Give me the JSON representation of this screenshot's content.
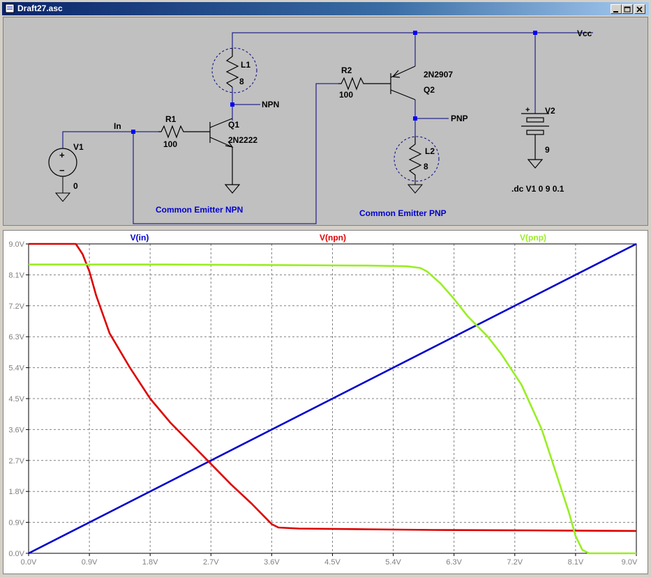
{
  "window": {
    "title": "Draft27.asc"
  },
  "schematic": {
    "labels": {
      "in": "In",
      "npn": "NPN",
      "pnp": "PNP",
      "vcc": "Vcc",
      "v1": "V1",
      "v1_val": "0",
      "v2": "V2",
      "v2_val": "9",
      "r1": "R1",
      "r1_val": "100",
      "r2": "R2",
      "r2_val": "100",
      "q1": "Q1",
      "q1_model": "2N2222",
      "q2": "Q2",
      "q2_model": "2N2907",
      "l1": "L1",
      "l1_val": "8",
      "l2": "L2",
      "l2_val": "8",
      "plus1": "+",
      "minus1": "−",
      "plus2": "+"
    },
    "directive": ".dc V1 0 9 0.1",
    "caption_npn": "Common Emitter NPN",
    "caption_pnp": "Common Emitter PNP"
  },
  "chart_data": {
    "type": "line",
    "xlim": [
      0,
      9
    ],
    "ylim": [
      0,
      9
    ],
    "x_ticks": [
      "0.0V",
      "0.9V",
      "1.8V",
      "2.7V",
      "3.6V",
      "4.5V",
      "5.4V",
      "6.3V",
      "7.2V",
      "8.1V",
      "9.0V"
    ],
    "y_ticks": [
      "0.0V",
      "0.9V",
      "1.8V",
      "2.7V",
      "3.6V",
      "4.5V",
      "5.4V",
      "6.3V",
      "7.2V",
      "8.1V",
      "9.0V"
    ],
    "grid": true,
    "series": [
      {
        "name": "V(in)",
        "color": "#0000cc",
        "x": [
          0,
          9
        ],
        "y": [
          0,
          9
        ]
      },
      {
        "name": "V(npn)",
        "color": "#dd0000",
        "x": [
          0,
          0.7,
          0.8,
          0.9,
          1.0,
          1.2,
          1.5,
          1.8,
          2.1,
          2.4,
          2.7,
          3.0,
          3.3,
          3.5,
          3.6,
          3.7,
          4.0,
          5.0,
          6.0,
          7.0,
          8.0,
          9.0
        ],
        "y": [
          9.0,
          9.0,
          8.7,
          8.2,
          7.5,
          6.4,
          5.4,
          4.5,
          3.8,
          3.2,
          2.6,
          2.0,
          1.45,
          1.05,
          0.85,
          0.75,
          0.72,
          0.7,
          0.68,
          0.67,
          0.66,
          0.65
        ]
      },
      {
        "name": "V(pnp)",
        "color": "#99ee22",
        "x": [
          0,
          2.0,
          4.0,
          5.0,
          5.6,
          5.8,
          5.9,
          6.1,
          6.3,
          6.5,
          6.8,
          7.0,
          7.3,
          7.6,
          7.8,
          8.0,
          8.1,
          8.2,
          8.3,
          9.0
        ],
        "y": [
          8.4,
          8.4,
          8.38,
          8.37,
          8.35,
          8.3,
          8.2,
          7.85,
          7.4,
          6.9,
          6.3,
          5.8,
          4.9,
          3.6,
          2.4,
          1.2,
          0.5,
          0.1,
          0.0,
          0.0
        ]
      }
    ]
  }
}
